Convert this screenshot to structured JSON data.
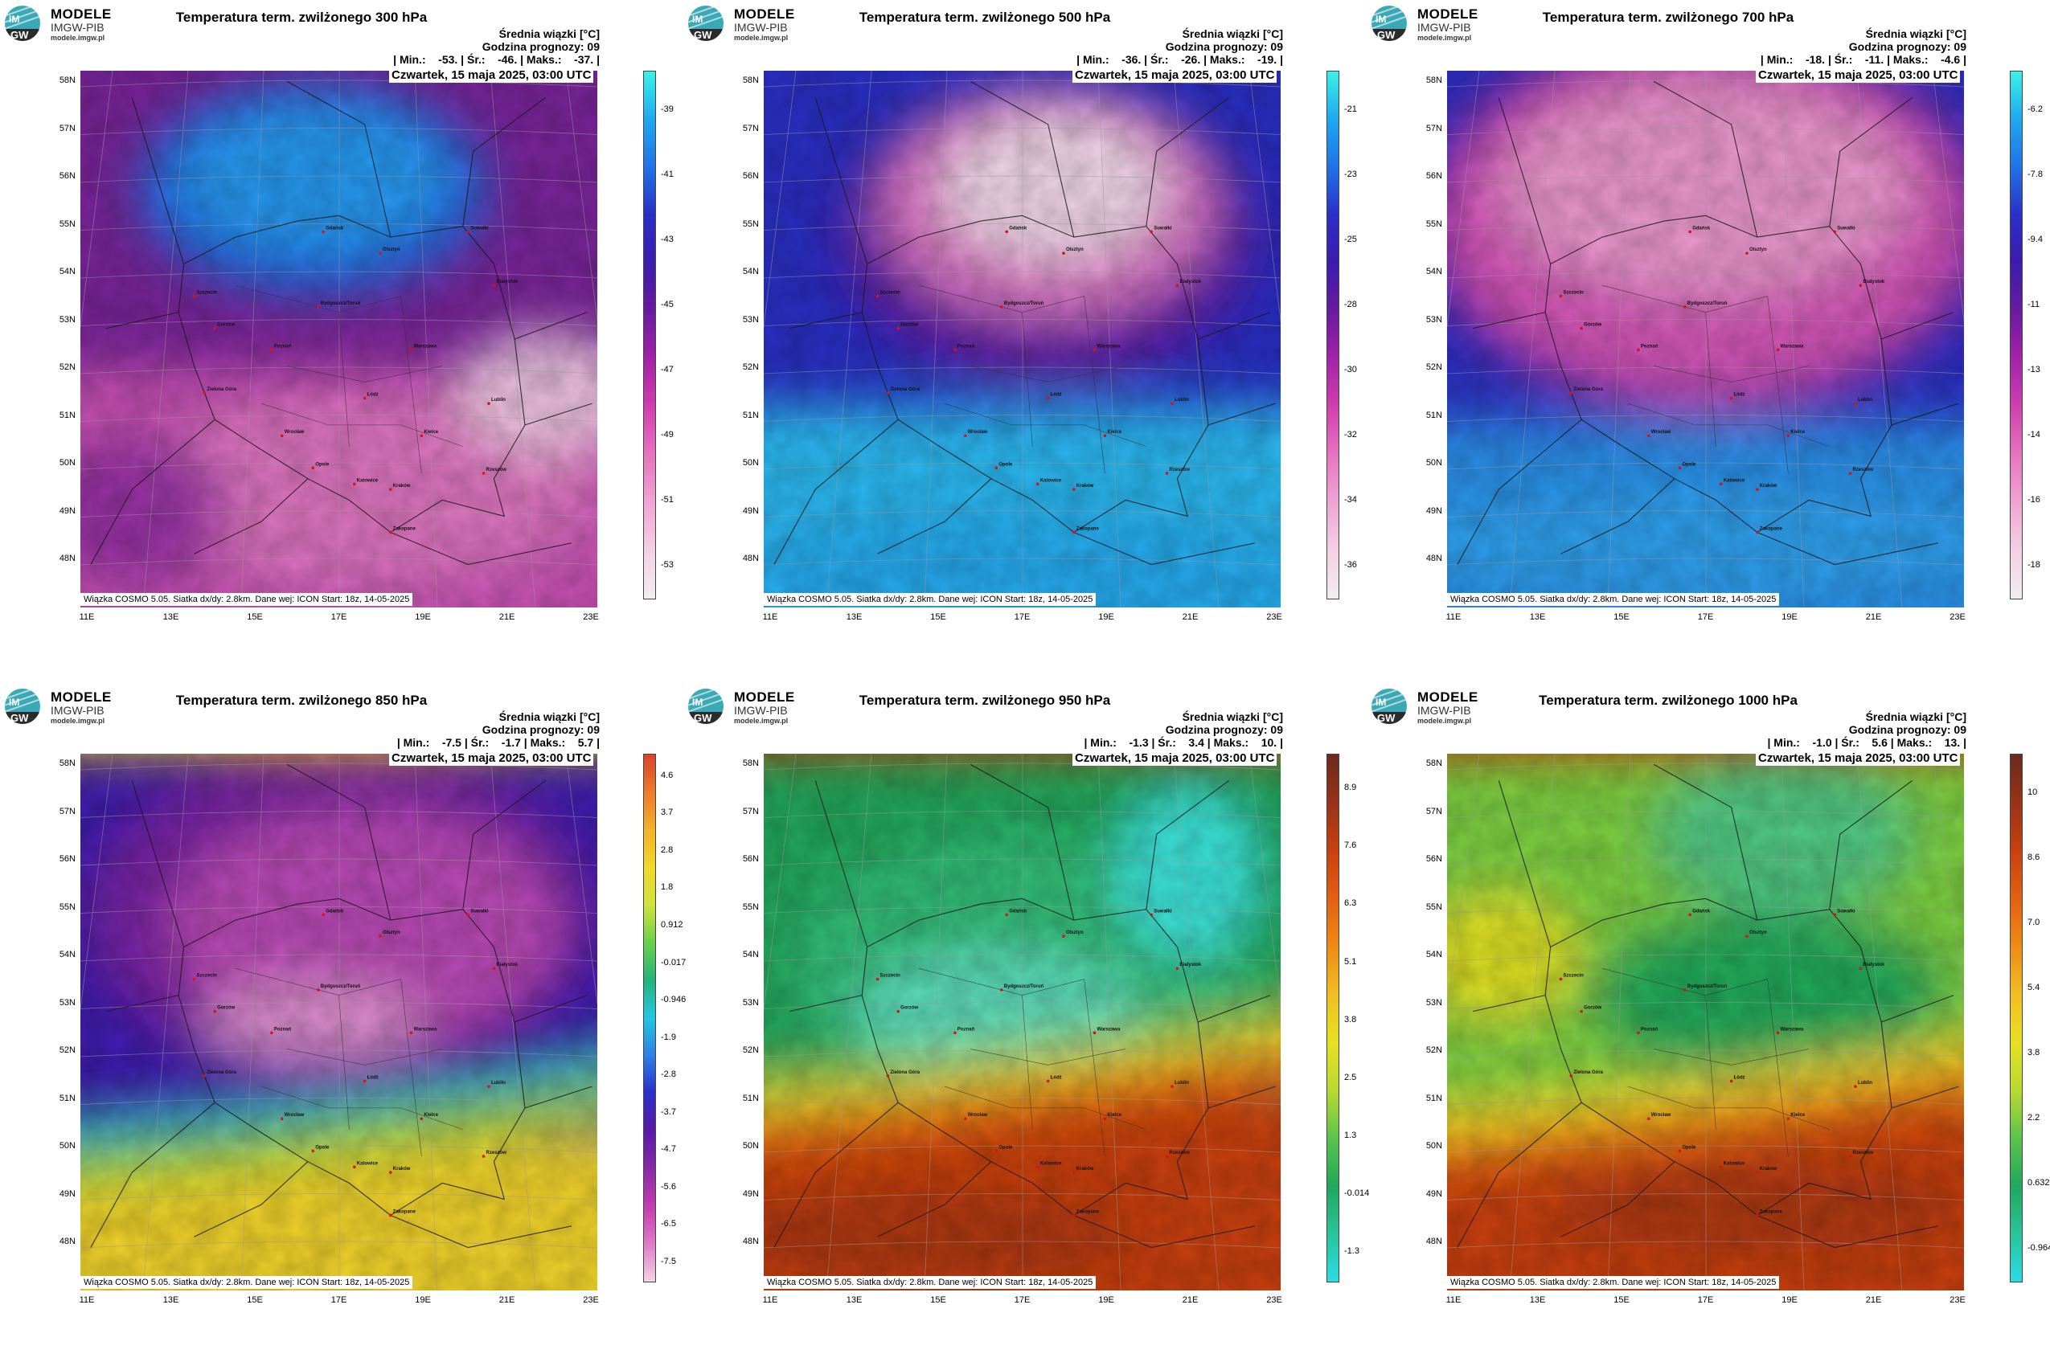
{
  "logo": {
    "line1": "MODELE",
    "line2": "IMGW-PIB",
    "line3": "modele.imgw.pl",
    "mark": "IM GW"
  },
  "common": {
    "unit_line": "Średnia wiązki [°C]",
    "forecast_hour": "Godzina prognozy: 09",
    "date": "Czwartek, 15 maja 2025, 03:00 UTC",
    "credit": "Wiązka COSMO 5.05. Siatka dx/dy: 2.8km. Dane wej: ICON Start: 18z, 14-05-2025",
    "lat_labels": [
      "58N",
      "57N",
      "56N",
      "55N",
      "54N",
      "53N",
      "52N",
      "51N",
      "50N",
      "49N",
      "48N"
    ],
    "lon_labels": [
      "11E",
      "13E",
      "15E",
      "17E",
      "19E",
      "21E",
      "23E"
    ]
  },
  "panels": [
    {
      "title": "Temperatura term. zwilżonego 300 hPa",
      "stats": "| Min.:    -53. | Śr.:    -46. | Maks.:    -37. |",
      "scheme": "cold",
      "pattern": "p300",
      "cbar_labels": [
        "-39",
        "-41",
        "-43",
        "-45",
        "-47",
        "-49",
        "-51",
        "-53"
      ]
    },
    {
      "title": "Temperatura term. zwilżonego 500 hPa",
      "stats": "| Min.:    -36. | Śr.:    -26. | Maks.:    -19. |",
      "scheme": "cold",
      "pattern": "p500",
      "cbar_labels": [
        "-21",
        "-23",
        "-25",
        "-28",
        "-30",
        "-32",
        "-34",
        "-36"
      ]
    },
    {
      "title": "Temperatura term. zwilżonego 700 hPa",
      "stats": "| Min.:    -18. | Śr.:    -11. | Maks.:    -4.6 |",
      "scheme": "cold",
      "pattern": "p700",
      "cbar_labels": [
        "-6.2",
        "-7.8",
        "-9.4",
        "-11",
        "-13",
        "-14",
        "-16",
        "-18"
      ]
    },
    {
      "title": "Temperatura term. zwilżonego 850 hPa",
      "stats": "| Min.:    -7.5 | Śr.:    -1.7 | Maks.:    5.7 |",
      "scheme": "full",
      "pattern": "p850",
      "cbar_labels": [
        "4.6",
        "3.7",
        "2.8",
        "1.8",
        "0.912",
        "-0.017",
        "-0.946",
        "-1.9",
        "-2.8",
        "-3.7",
        "-4.7",
        "-5.6",
        "-6.5",
        "-7.5"
      ]
    },
    {
      "title": "Temperatura term. zwilżonego 950 hPa",
      "stats": "| Min.:    -1.3 | Śr.:    3.4 | Maks.:    10. |",
      "scheme": "warm",
      "pattern": "p950",
      "cbar_labels": [
        "8.9",
        "7.6",
        "6.3",
        "5.1",
        "3.8",
        "2.5",
        "1.3",
        "-0.014",
        "-1.3"
      ]
    },
    {
      "title": "Temperatura term. zwilżonego 1000 hPa",
      "stats": "| Min.:    -1.0 | Śr.:    5.6 | Maks.:    13. |",
      "scheme": "warm",
      "pattern": "p1000",
      "cbar_labels": [
        "10",
        "8.6",
        "7.0",
        "5.4",
        "3.8",
        "2.2",
        "0.632",
        "-0.964"
      ]
    }
  ]
}
